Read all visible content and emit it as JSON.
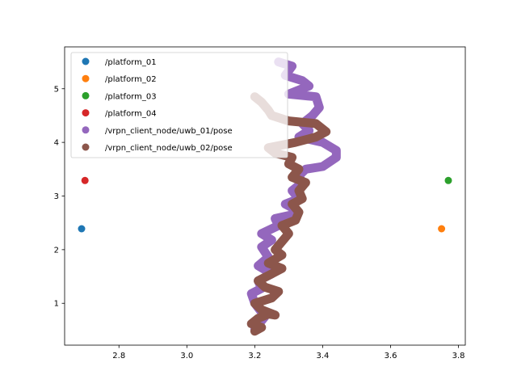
{
  "chart_data": {
    "type": "scatter",
    "title": "",
    "xlabel": "",
    "ylabel": "",
    "xlim": [
      2.64,
      3.82
    ],
    "ylim": [
      0.22,
      5.78
    ],
    "xticks": [
      2.8,
      3.0,
      3.2,
      3.4,
      3.6,
      3.8
    ],
    "yticks": [
      1,
      2,
      3,
      4,
      5
    ],
    "xtick_labels": [
      "2.8",
      "3.0",
      "3.2",
      "3.4",
      "3.6",
      "3.8"
    ],
    "ytick_labels": [
      "1",
      "2",
      "3",
      "4",
      "5"
    ],
    "grid": false,
    "legend_position": "top-left",
    "series": [
      {
        "name": "/platform_01",
        "color": "#1f77b4",
        "style": "points",
        "points": [
          [
            2.69,
            2.39
          ]
        ]
      },
      {
        "name": "/platform_02",
        "color": "#ff7f0e",
        "style": "points",
        "points": [
          [
            3.75,
            2.39
          ]
        ]
      },
      {
        "name": "/platform_03",
        "color": "#2ca02c",
        "style": "points",
        "points": [
          [
            3.77,
            3.29
          ]
        ]
      },
      {
        "name": "/platform_04",
        "color": "#d62728",
        "style": "points",
        "points": [
          [
            2.7,
            3.29
          ]
        ]
      },
      {
        "name": "/vrpn_client_node/uwb_01/pose",
        "color": "#9467bd",
        "style": "trajectory",
        "points": [
          [
            3.2,
            0.52
          ],
          [
            3.23,
            0.75
          ],
          [
            3.2,
            1.0
          ],
          [
            3.19,
            1.18
          ],
          [
            3.22,
            1.28
          ],
          [
            3.21,
            1.42
          ],
          [
            3.25,
            1.55
          ],
          [
            3.21,
            1.7
          ],
          [
            3.24,
            1.86
          ],
          [
            3.22,
            2.05
          ],
          [
            3.25,
            2.18
          ],
          [
            3.22,
            2.3
          ],
          [
            3.27,
            2.45
          ],
          [
            3.26,
            2.58
          ],
          [
            3.31,
            2.65
          ],
          [
            3.32,
            2.75
          ],
          [
            3.29,
            2.85
          ],
          [
            3.33,
            2.95
          ],
          [
            3.31,
            3.1
          ],
          [
            3.34,
            3.25
          ],
          [
            3.33,
            3.38
          ],
          [
            3.35,
            3.5
          ],
          [
            3.4,
            3.55
          ],
          [
            3.44,
            3.72
          ],
          [
            3.44,
            3.85
          ],
          [
            3.4,
            4.0
          ],
          [
            3.33,
            4.1
          ],
          [
            3.36,
            4.22
          ],
          [
            3.34,
            4.35
          ],
          [
            3.37,
            4.5
          ],
          [
            3.39,
            4.65
          ],
          [
            3.38,
            4.85
          ],
          [
            3.3,
            4.9
          ],
          [
            3.36,
            5.05
          ],
          [
            3.34,
            5.15
          ],
          [
            3.29,
            5.25
          ],
          [
            3.31,
            5.42
          ],
          [
            3.27,
            5.5
          ]
        ]
      },
      {
        "name": "/vrpn_client_node/uwb_02/pose",
        "color": "#8c564b",
        "style": "trajectory",
        "points": [
          [
            3.2,
            0.48
          ],
          [
            3.22,
            0.55
          ],
          [
            3.19,
            0.62
          ],
          [
            3.21,
            0.72
          ],
          [
            3.24,
            0.8
          ],
          [
            3.26,
            0.78
          ],
          [
            3.22,
            0.88
          ],
          [
            3.2,
            1.0
          ],
          [
            3.25,
            1.1
          ],
          [
            3.27,
            1.22
          ],
          [
            3.23,
            1.3
          ],
          [
            3.21,
            1.42
          ],
          [
            3.25,
            1.55
          ],
          [
            3.28,
            1.65
          ],
          [
            3.24,
            1.75
          ],
          [
            3.28,
            1.9
          ],
          [
            3.26,
            2.0
          ],
          [
            3.28,
            2.15
          ],
          [
            3.3,
            2.3
          ],
          [
            3.28,
            2.45
          ],
          [
            3.32,
            2.55
          ],
          [
            3.33,
            2.7
          ],
          [
            3.31,
            2.85
          ],
          [
            3.34,
            2.95
          ],
          [
            3.33,
            3.1
          ],
          [
            3.35,
            3.25
          ],
          [
            3.31,
            3.35
          ],
          [
            3.33,
            3.5
          ],
          [
            3.3,
            3.6
          ],
          [
            3.31,
            3.72
          ],
          [
            3.26,
            3.8
          ],
          [
            3.24,
            3.9
          ],
          [
            3.32,
            4.0
          ],
          [
            3.38,
            4.1
          ],
          [
            3.41,
            4.2
          ],
          [
            3.38,
            4.35
          ],
          [
            3.3,
            4.4
          ],
          [
            3.25,
            4.5
          ],
          [
            3.24,
            4.6
          ],
          [
            3.22,
            4.75
          ],
          [
            3.2,
            4.85
          ]
        ]
      }
    ]
  }
}
